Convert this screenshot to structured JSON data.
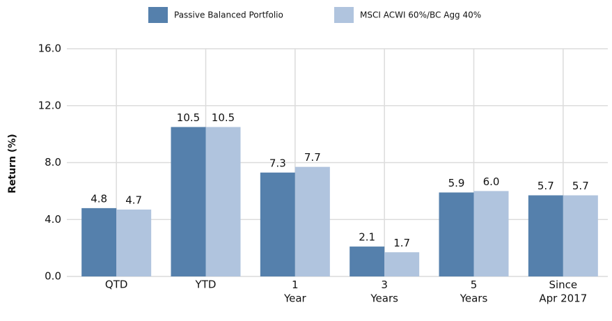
{
  "chart_data": {
    "type": "bar",
    "y_label": "Return (%)",
    "categories": [
      "QTD",
      "YTD",
      "1\nYear",
      "3\nYears",
      "5\nYears",
      "Since\nApr 2017"
    ],
    "series": [
      {
        "name": "Passive Balanced Portfolio",
        "color": "#5580ac",
        "values": [
          4.8,
          10.5,
          7.3,
          2.1,
          5.9,
          5.7
        ],
        "value_labels": [
          "4.8",
          "10.5",
          "7.3",
          "2.1",
          "5.9",
          "5.7"
        ]
      },
      {
        "name": "MSCI ACWI 60%/BC Agg 40%",
        "color": "#b0c4de",
        "values": [
          4.7,
          10.5,
          7.7,
          1.7,
          6.0,
          5.7
        ],
        "value_labels": [
          "4.7",
          "10.5",
          "7.7",
          "1.7",
          "6.0",
          "5.7"
        ]
      }
    ],
    "ylim": [
      0,
      16
    ],
    "yticks": [
      {
        "value": 0,
        "label": "0.0"
      },
      {
        "value": 4,
        "label": "4.0"
      },
      {
        "value": 8,
        "label": "8.0"
      },
      {
        "value": 12,
        "label": "12.0"
      },
      {
        "value": 16,
        "label": "16.0"
      }
    ],
    "grid": true,
    "legend": "top"
  }
}
